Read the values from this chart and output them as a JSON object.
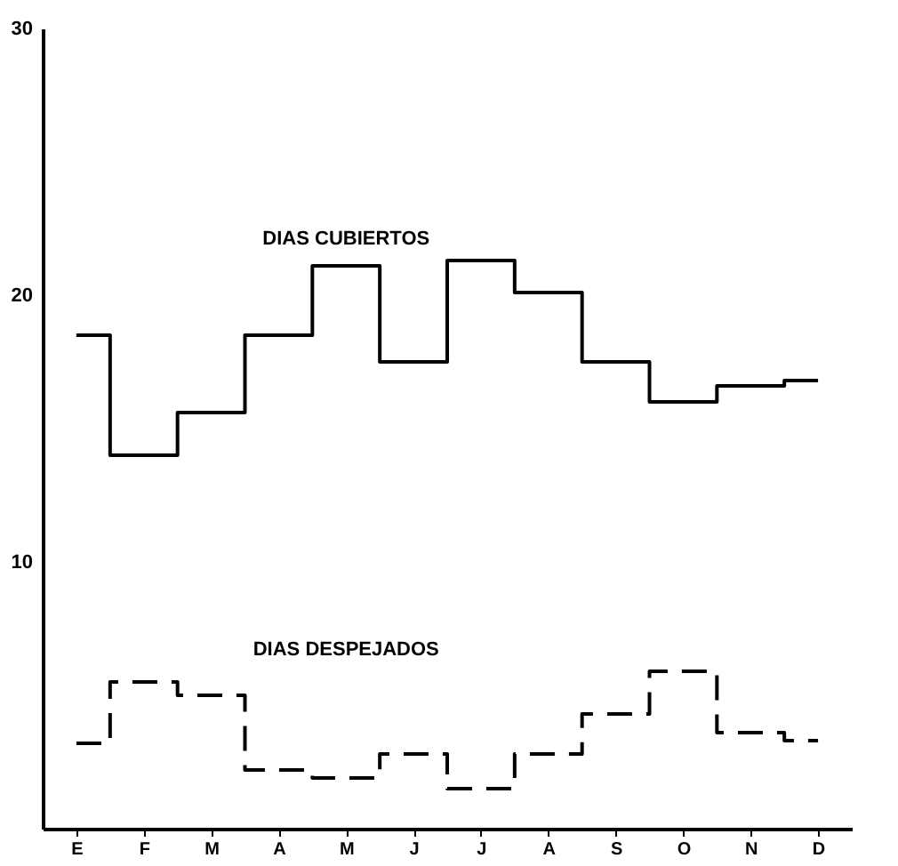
{
  "chart_data": {
    "type": "step",
    "categories": [
      "E",
      "F",
      "M",
      "A",
      "M",
      "J",
      "J",
      "A",
      "S",
      "O",
      "N",
      "D"
    ],
    "series": [
      {
        "name": "DIAS CUBIERTOS",
        "color": "#000000",
        "line_style": "solid",
        "values": [
          18.5,
          14.0,
          15.6,
          18.5,
          21.1,
          17.5,
          21.3,
          20.1,
          17.5,
          16.0,
          16.6,
          16.8
        ]
      },
      {
        "name": "DIAS DESPEJADOS",
        "color": "#000000",
        "line_style": "dashed",
        "values": [
          3.2,
          5.5,
          5.0,
          2.2,
          1.9,
          2.8,
          1.5,
          2.8,
          4.3,
          5.9,
          3.6,
          3.3
        ]
      }
    ],
    "ylim": [
      0,
      30
    ],
    "yticks": [
      10,
      20,
      30
    ],
    "grid": false
  }
}
